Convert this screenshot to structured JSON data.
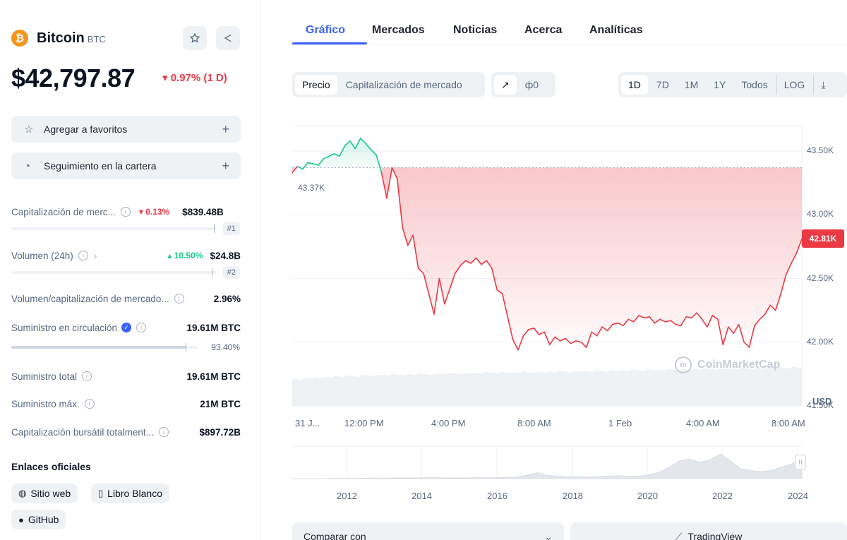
{
  "coin": {
    "logo_glyph": "₿",
    "name": "Bitcoin",
    "symbol": "BTC",
    "price": "$42,797.87",
    "change": "▾ 0.97% (1 D)",
    "accent": "#f7931a"
  },
  "header_icons": {
    "star": "star-icon",
    "share": "share-icon"
  },
  "actions": {
    "favorites": "Agregar a favoritos",
    "portfolio": "Seguimiento en la cartera",
    "plus": "+"
  },
  "stats": {
    "market_cap": {
      "label": "Capitalización de merc...",
      "change": "▾ 0.13%",
      "value": "$839.48B",
      "rank": "#1"
    },
    "volume": {
      "label": "Volumen (24h)",
      "change": "▴ 10.50%",
      "value": "$24.8B",
      "rank": "#2"
    },
    "vol_mcap": {
      "label": "Volumen/capitalización de mercado...",
      "value": "2.96%"
    },
    "circulating": {
      "label": "Suministro en circulación",
      "value": "19.61M BTC",
      "percent": "93.40%",
      "fill": 0.934
    },
    "total": {
      "label": "Suministro total",
      "value": "19.61M BTC"
    },
    "max": {
      "label": "Suministro máx.",
      "value": "21M BTC"
    },
    "fdv": {
      "label": "Capitalización bursátil totalment...",
      "value": "$897.72B"
    }
  },
  "links": {
    "title": "Enlaces oficiales",
    "website": "Sitio web",
    "whitepaper": "Libro Blanco",
    "github": "GitHub"
  },
  "tabs": [
    "Gráfico",
    "Mercados",
    "Noticias",
    "Acerca",
    "Analíticas"
  ],
  "chart_controls": {
    "metric": [
      "Precio",
      "Capitalización de mercado"
    ],
    "line_icon": "↗",
    "candle_icon": "ф0",
    "ranges": [
      "1D",
      "7D",
      "1M",
      "1Y",
      "Todos",
      "LOG"
    ],
    "download_icon": "⤓"
  },
  "chart": {
    "open_label": "43.37K",
    "current_label": "42.81K",
    "currency": "USD",
    "watermark": "CoinMarketCap",
    "watermark_icon": "m",
    "slider_handle": "II"
  },
  "compare": {
    "label": "Comparar con",
    "tradingview": "TradingView",
    "tv_icon": "⟋"
  },
  "chart_data": {
    "type": "line",
    "x_tick_labels": [
      "31 J...",
      "12:00 PM",
      "4:00 PM",
      "8:00 AM",
      "1 Feb",
      "4:00 AM",
      "8:00 AM"
    ],
    "y_ticks": [
      "43.50K",
      "43.00K",
      "42.50K",
      "42.00K",
      "41.50K"
    ],
    "ylim": [
      41500,
      43700
    ],
    "baseline": 43370,
    "series": [
      {
        "values": [
          43330,
          43380,
          43360,
          43410,
          43400,
          43390,
          43440,
          43460,
          43480,
          43460,
          43540,
          43580,
          43520,
          43600,
          43560,
          43510,
          43470,
          43330,
          43130,
          43370,
          43280,
          42900,
          42760,
          42840,
          42580,
          42540,
          42380,
          42220,
          42500,
          42300,
          42420,
          42540,
          42600,
          42640,
          42620,
          42660,
          42610,
          42640,
          42580,
          42410,
          42380,
          42200,
          42020,
          41940,
          42050,
          42100,
          42110,
          42060,
          42080,
          41980,
          42040,
          42010,
          42030,
          41990,
          42010,
          42000,
          41960,
          42080,
          42050,
          42120,
          42090,
          42140,
          42150,
          42130,
          42180,
          42160,
          42210,
          42190,
          42200,
          42150,
          42180,
          42160,
          42170,
          42140,
          42130,
          42200,
          42190,
          42230,
          42180,
          42120,
          42210,
          42180,
          41980,
          42120,
          42070,
          42140,
          42000,
          41960,
          42130,
          42180,
          42220,
          42290,
          42250,
          42380,
          42530,
          42620,
          42700,
          42810
        ]
      }
    ],
    "volume": [
      0.42,
      0.41,
      0.44,
      0.43,
      0.45,
      0.44,
      0.46,
      0.45,
      0.47,
      0.46,
      0.48,
      0.47,
      0.46,
      0.49,
      0.48,
      0.47,
      0.48,
      0.49,
      0.48,
      0.5,
      0.49,
      0.48,
      0.5,
      0.49,
      0.51,
      0.5,
      0.49,
      0.5,
      0.51,
      0.5,
      0.52,
      0.51,
      0.5,
      0.52,
      0.51,
      0.52,
      0.51,
      0.53,
      0.52,
      0.51,
      0.53,
      0.52,
      0.53,
      0.52,
      0.54,
      0.53,
      0.52,
      0.54,
      0.53,
      0.54,
      0.53,
      0.55,
      0.54,
      0.53,
      0.55,
      0.54,
      0.55,
      0.54,
      0.56,
      0.55,
      0.54,
      0.56,
      0.55,
      0.56,
      0.55,
      0.57,
      0.56,
      0.55,
      0.57,
      0.56,
      0.57,
      0.56,
      0.58,
      0.57,
      0.56,
      0.58,
      0.57,
      0.58,
      0.57,
      0.59,
      0.58,
      0.57,
      0.59,
      0.58,
      0.59,
      0.58,
      0.6,
      0.59,
      0.58,
      0.6,
      0.59,
      0.6,
      0.59,
      0.61,
      0.6,
      0.59,
      0.61,
      0.6
    ],
    "nav_x_labels": [
      "2012",
      "2014",
      "2016",
      "2018",
      "2020",
      "2022",
      "2024"
    ],
    "nav_values": [
      0,
      0,
      0,
      0,
      0.01,
      0.01,
      0.01,
      0.01,
      0.02,
      0.01,
      0.02,
      0.02,
      0.02,
      0.03,
      0.03,
      0.02,
      0.02,
      0.02,
      0.03,
      0.03,
      0.03,
      0.04,
      0.05,
      0.1,
      0.18,
      0.1,
      0.08,
      0.06,
      0.06,
      0.05,
      0.06,
      0.08,
      0.09,
      0.07,
      0.08,
      0.12,
      0.2,
      0.35,
      0.55,
      0.6,
      0.5,
      0.58,
      0.75,
      0.55,
      0.3,
      0.25,
      0.22,
      0.25,
      0.35,
      0.45,
      0.62
    ]
  },
  "colors": {
    "up": "#16c784",
    "down": "#ea3943",
    "accent": "#3861fb"
  }
}
